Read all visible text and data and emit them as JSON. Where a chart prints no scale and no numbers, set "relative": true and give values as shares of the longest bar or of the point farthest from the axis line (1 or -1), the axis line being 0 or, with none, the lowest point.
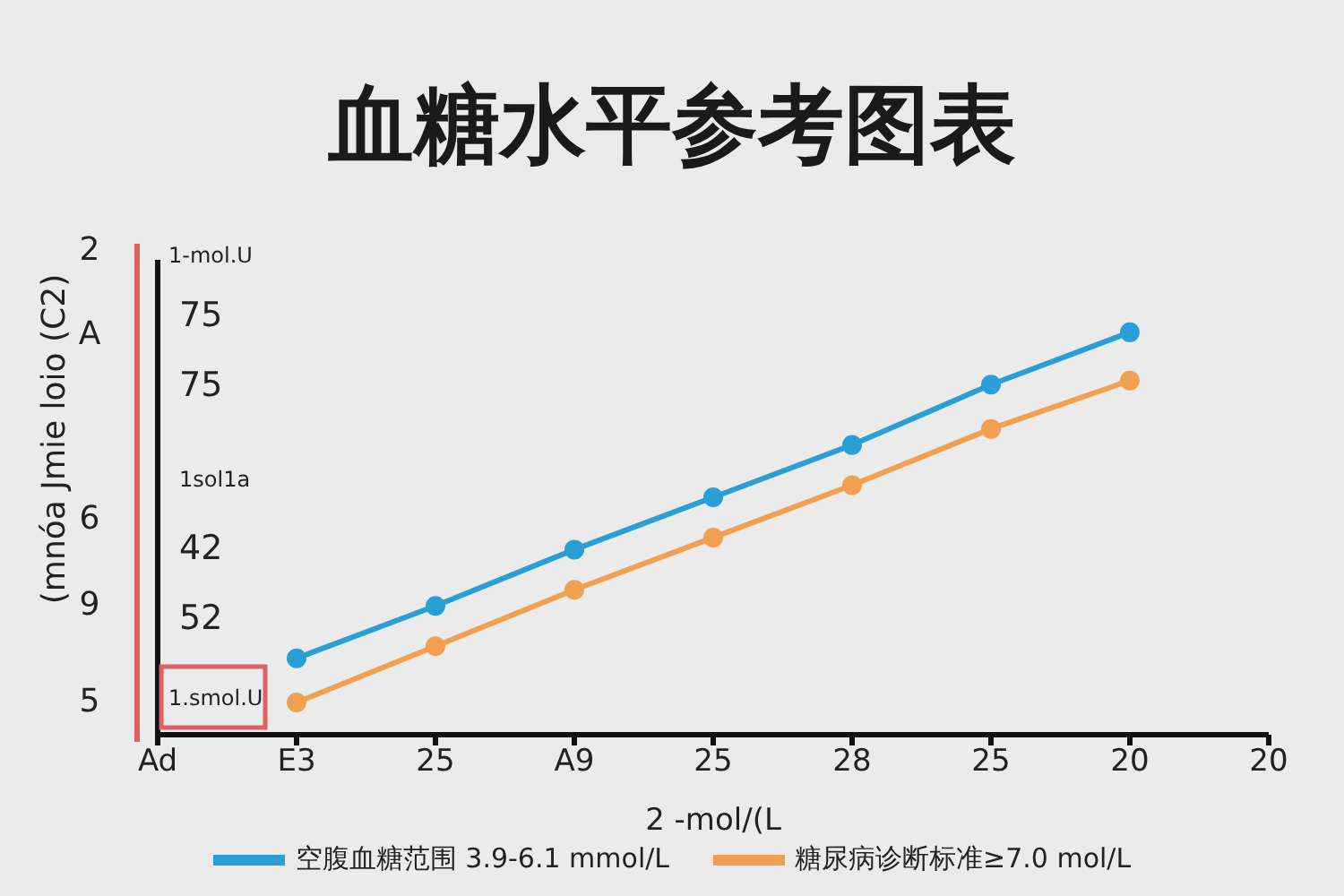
{
  "chart_data": {
    "type": "line",
    "title": "血糖水平参考图表",
    "xlabel": "2 -mol/(L",
    "ylabel": "(mnóa Jmie loio (C2)",
    "relative": true,
    "marker": "circle",
    "legend": "bottom",
    "categories": [
      "Ad",
      "E3",
      "25",
      "A9",
      "25",
      "28",
      "25",
      "20",
      "20"
    ],
    "series": [
      {
        "name": "空腹血糖范围 3.9-6.1 mmol/L",
        "color": "#2a9fd6",
        "values": [
          null,
          0.19,
          0.32,
          0.46,
          0.59,
          0.72,
          0.87,
          1,
          null
        ]
      },
      {
        "name": "糖尿病诊断标准≥7.0 mol/L",
        "color": "#f0a050",
        "values": [
          null,
          0.08,
          0.22,
          0.36,
          0.49,
          0.62,
          0.76,
          0.88,
          null
        ]
      }
    ],
    "annotations": [
      "2",
      "A",
      "6",
      "9",
      "5",
      "1-mol.U",
      "75",
      "75",
      "1sol1a",
      "42",
      "52",
      "1.smol.U"
    ]
  }
}
